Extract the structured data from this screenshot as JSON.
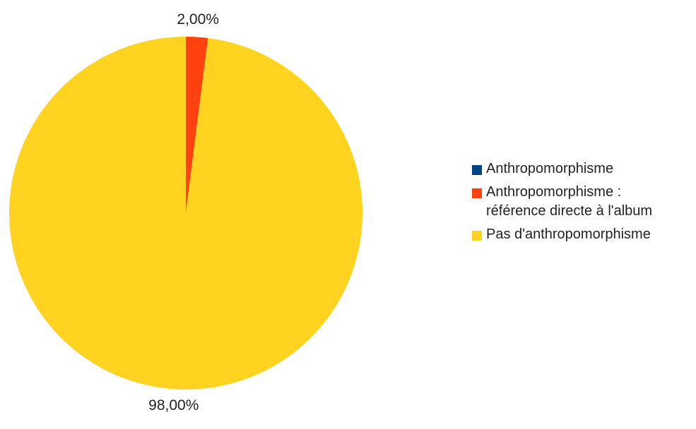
{
  "chart_data": {
    "type": "pie",
    "title": "",
    "categories": [
      "Anthropomorphisme",
      "Anthropomorphisme  :\nréférence directe à l'album",
      "Pas d'anthropomorphisme"
    ],
    "values": [
      0,
      2,
      98
    ],
    "data_labels": [
      "",
      "2,00%",
      "98,00%"
    ],
    "colors": [
      "#004586",
      "#ff420e",
      "#ffd320"
    ],
    "legend_position": "right",
    "start_angle": "top, clockwise"
  }
}
